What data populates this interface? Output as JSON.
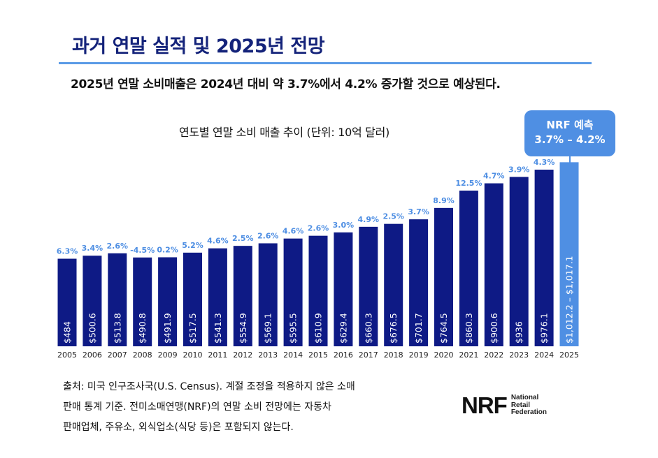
{
  "header": {
    "title": "과거 연말 실적 및 2025년 전망",
    "subtitle": "2025년 연말 소비매출은 2024년 대비 약 3.7%에서 4.2% 증가할 것으로 예상된다."
  },
  "callout": {
    "line1": "NRF 예측",
    "line2": "3.7% – 4.2%"
  },
  "footnote": {
    "line1": "출처: 미국 인구조사국(U.S. Census). 계절 조정을 적용하지 않은 소매",
    "line2": "판매 통계 기준.  전미소매연맹(NRF)의 연말 소비 전망에는 자동차",
    "line3": "판매업체, 주유소, 외식업소(식당 등)은 포함되지 않는다."
  },
  "logo": {
    "mark": "NRF",
    "line1": "National",
    "line2": "Retail",
    "line3": "Federation"
  },
  "colors": {
    "bar": "#0e1a85",
    "forecast": "#4f8fe3",
    "growth_label": "#4f8fe3",
    "title": "#14237a"
  },
  "chart_data": {
    "type": "bar",
    "title": "연도별 연말 소비 매출 추이 (단위: 10억 달러)",
    "xlabel": "",
    "ylabel": "",
    "categories": [
      "2005",
      "2006",
      "2007",
      "2008",
      "2009",
      "2010",
      "2011",
      "2012",
      "2013",
      "2014",
      "2015",
      "2016",
      "2017",
      "2018",
      "2019",
      "2020",
      "2021",
      "2022",
      "2023",
      "2024",
      "2025"
    ],
    "values": [
      484,
      500.6,
      513.8,
      490.8,
      491.9,
      517.5,
      541.3,
      554.9,
      569.1,
      595.5,
      610.9,
      629.4,
      660.3,
      676.5,
      701.7,
      764.5,
      860.3,
      900.6,
      936,
      976.1,
      1017.1
    ],
    "value_labels": [
      "$484",
      "$500.6",
      "$513.8",
      "$490.8",
      "$491.9",
      "$517.5",
      "$541.3",
      "$554.9",
      "$569.1",
      "$595.5",
      "$610.9",
      "$629.4",
      "$660.3",
      "$676.5",
      "$701.7",
      "$764.5",
      "$860.3",
      "$900.6",
      "$936",
      "$976.1",
      "$1,012.2 – $1,017.1"
    ],
    "growth_labels": [
      "6.3%",
      "3.4%",
      "2.6%",
      "-4.5%",
      "0.2%",
      "5.2%",
      "4.6%",
      "2.5%",
      "2.6%",
      "4.6%",
      "2.6%",
      "3.0%",
      "4.9%",
      "2.5%",
      "3.7%",
      "8.9%",
      "12.5%",
      "4.7%",
      "3.9%",
      "4.3%",
      ""
    ],
    "forecast_index": 20,
    "ylim": [
      0,
      1040
    ]
  }
}
